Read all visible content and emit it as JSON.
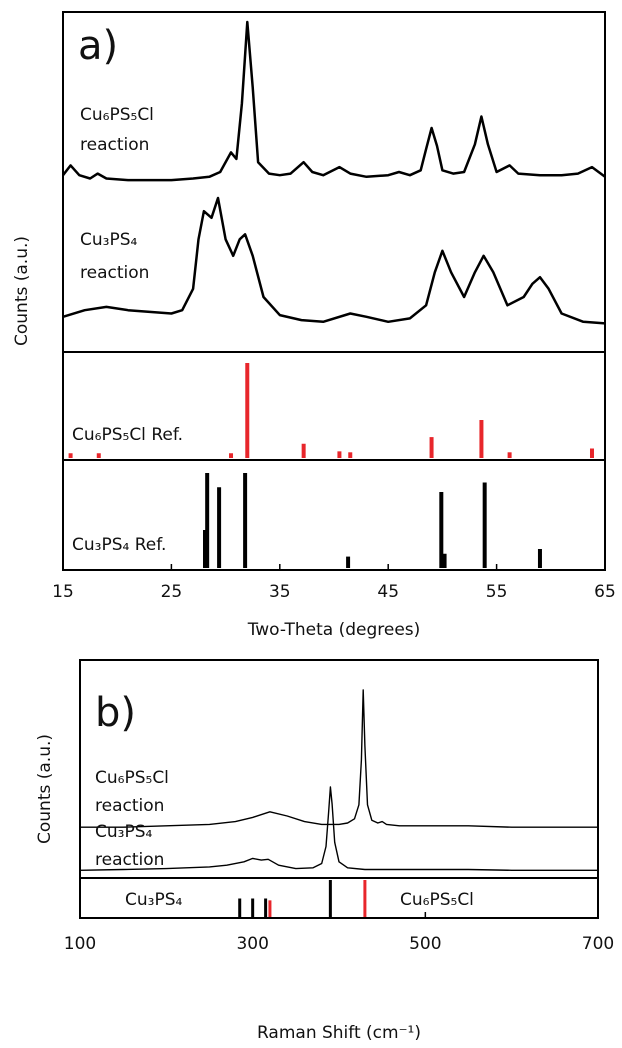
{
  "chart_data": [
    {
      "type": "line",
      "panel_label": "a)",
      "xlabel": "Two-Theta (degrees)",
      "ylabel": "Counts (a.u.)",
      "xlim": [
        15,
        65
      ],
      "xticks": [
        15,
        25,
        35,
        45,
        55,
        65
      ],
      "ylim": [
        0,
        100
      ],
      "series": [
        {
          "label": [
            "Cu₆PS₅Cl",
            "reaction"
          ],
          "color": "#000000",
          "x": [
            15,
            15.7,
            16.5,
            17.5,
            18.2,
            19,
            21,
            23,
            25,
            27,
            28.5,
            29.5,
            30.5,
            31,
            31.5,
            32,
            32.5,
            33,
            34,
            35,
            36,
            37.2,
            38,
            39,
            40.5,
            41.5,
            43,
            45,
            46,
            47,
            48,
            48.5,
            49,
            49.5,
            50,
            51,
            52,
            53,
            53.6,
            54.2,
            55,
            56.2,
            57,
            59,
            61,
            62.5,
            63.8,
            65
          ],
          "values": [
            6,
            12,
            6,
            4,
            7,
            4,
            3,
            3,
            3,
            4,
            5,
            8,
            20,
            16,
            50,
            100,
            60,
            14,
            7,
            6,
            7,
            14,
            8,
            6,
            11,
            7,
            5,
            6,
            8,
            6,
            9,
            22,
            35,
            24,
            9,
            7,
            8,
            25,
            42,
            25,
            8,
            12,
            7,
            6,
            6,
            7,
            11,
            5
          ]
        },
        {
          "label": [
            "Cu₃PS₄",
            "reaction"
          ],
          "color": "#000000",
          "x": [
            15,
            17,
            19,
            21,
            23,
            25,
            26,
            27,
            27.5,
            28,
            28.7,
            29.3,
            30,
            30.7,
            31.3,
            31.8,
            32.5,
            33.5,
            35,
            37,
            39,
            41.5,
            43,
            45,
            47,
            48.5,
            49.3,
            50,
            50.8,
            52,
            53,
            53.8,
            54.7,
            56,
            57.5,
            58.3,
            59,
            59.8,
            61,
            63,
            65
          ],
          "values": [
            8,
            12,
            14,
            12,
            11,
            10,
            12,
            25,
            55,
            72,
            68,
            80,
            55,
            45,
            55,
            58,
            45,
            20,
            9,
            6,
            5,
            10,
            8,
            5,
            7,
            15,
            35,
            48,
            35,
            20,
            35,
            45,
            35,
            15,
            20,
            28,
            32,
            25,
            10,
            5,
            4
          ]
        }
      ],
      "references": [
        {
          "name": "Cu₆PS₅Cl Ref.",
          "color": "#e8262b",
          "x": [
            15.7,
            18.3,
            30.5,
            32,
            37.2,
            40.5,
            41.5,
            49,
            53.6,
            56.2,
            63.8
          ],
          "values": [
            5,
            5,
            5,
            100,
            15,
            7,
            6,
            22,
            40,
            6,
            10
          ]
        },
        {
          "name": "Cu₃PS₄ Ref.",
          "color": "#000000",
          "x": [
            28.1,
            28.3,
            29.4,
            31.8,
            41.3,
            49.9,
            50.2,
            53.9,
            59
          ],
          "values": [
            40,
            100,
            85,
            100,
            12,
            80,
            15,
            90,
            20
          ]
        }
      ]
    },
    {
      "type": "line",
      "panel_label": "b)",
      "xlabel": "Raman Shift (cm⁻¹)",
      "ylabel": "Counts (a.u.)",
      "xlim": [
        100,
        700
      ],
      "xticks": [
        100,
        300,
        500,
        700
      ],
      "ylim": [
        0,
        100
      ],
      "series": [
        {
          "label": [
            "Cu₆PS₅Cl",
            "reaction"
          ],
          "color": "#000000",
          "x": [
            100,
            150,
            200,
            250,
            280,
            300,
            320,
            340,
            360,
            380,
            400,
            410,
            418,
            423,
            426,
            428,
            430,
            433,
            438,
            445,
            450,
            455,
            470,
            500,
            550,
            600,
            650,
            700
          ],
          "values": [
            2,
            2,
            3,
            4,
            6,
            9,
            13,
            10,
            6,
            4,
            4,
            5,
            8,
            18,
            50,
            100,
            60,
            18,
            7,
            5,
            6,
            4,
            3,
            3,
            3,
            2,
            2,
            2
          ]
        },
        {
          "label": [
            "Cu₃PS₄",
            "reaction"
          ],
          "color": "#000000",
          "x": [
            100,
            150,
            200,
            250,
            270,
            290,
            300,
            310,
            318,
            330,
            350,
            370,
            380,
            385,
            388,
            390,
            392,
            395,
            400,
            410,
            430,
            450,
            500,
            550,
            600,
            650,
            700
          ],
          "values": [
            2,
            3,
            4,
            6,
            8,
            12,
            16,
            14,
            15,
            8,
            4,
            5,
            10,
            30,
            70,
            100,
            80,
            35,
            12,
            5,
            3,
            3,
            3,
            3,
            2,
            2,
            2
          ]
        }
      ],
      "references": [
        {
          "name": "Cu₃PS₄",
          "color": "#000000",
          "x": [
            285,
            300,
            315,
            390
          ],
          "values": [
            50,
            50,
            50,
            100
          ]
        },
        {
          "name": "Cu₆PS₅Cl",
          "color": "#e8262b",
          "x": [
            320,
            430
          ],
          "values": [
            45,
            100
          ]
        }
      ]
    }
  ]
}
